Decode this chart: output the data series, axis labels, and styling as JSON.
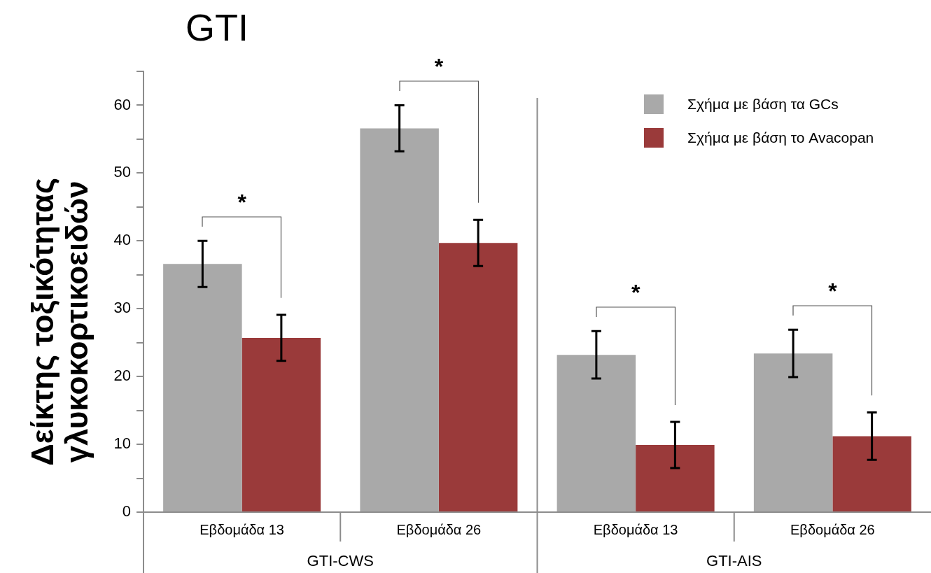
{
  "chart_data": {
    "type": "bar",
    "title": "GTI",
    "ylabel": "Δείκτης τοξικότητας γλυκοκορτικοειδών",
    "categories": [
      "Εβδομάδα 13",
      "Εβδομάδα 26",
      "Εβδομάδα 13",
      "Εβδομάδα 26"
    ],
    "series": [
      {
        "name": "Σχήμα με βάση τα GCs",
        "color": "#a9a9a9",
        "values": [
          36.6,
          56.6,
          23.2,
          23.4
        ],
        "errors": [
          3.4,
          3.4,
          3.5,
          3.5
        ]
      },
      {
        "name": "Σχήμα με βάση το Avacopan",
        "color": "#9a3a3a",
        "values": [
          25.7,
          39.7,
          9.9,
          11.2
        ],
        "errors": [
          3.4,
          3.4,
          3.4,
          3.5
        ]
      }
    ],
    "ylim": [
      0,
      65
    ],
    "yticks": [
      0,
      {
        "value": 5,
        "label": null
      },
      10,
      {
        "value": 15,
        "label": null
      },
      20,
      {
        "value": 25,
        "label": null
      },
      30,
      {
        "value": 35,
        "label": null
      },
      40,
      {
        "value": 45,
        "label": null
      },
      50,
      {
        "value": 55,
        "label": null
      },
      60,
      {
        "value": 65,
        "label": null
      }
    ],
    "grid": false,
    "legend": "top right",
    "annotations": [
      "GTI-CWS",
      "GTI-AIS",
      "*",
      "*",
      "*",
      "*"
    ]
  }
}
